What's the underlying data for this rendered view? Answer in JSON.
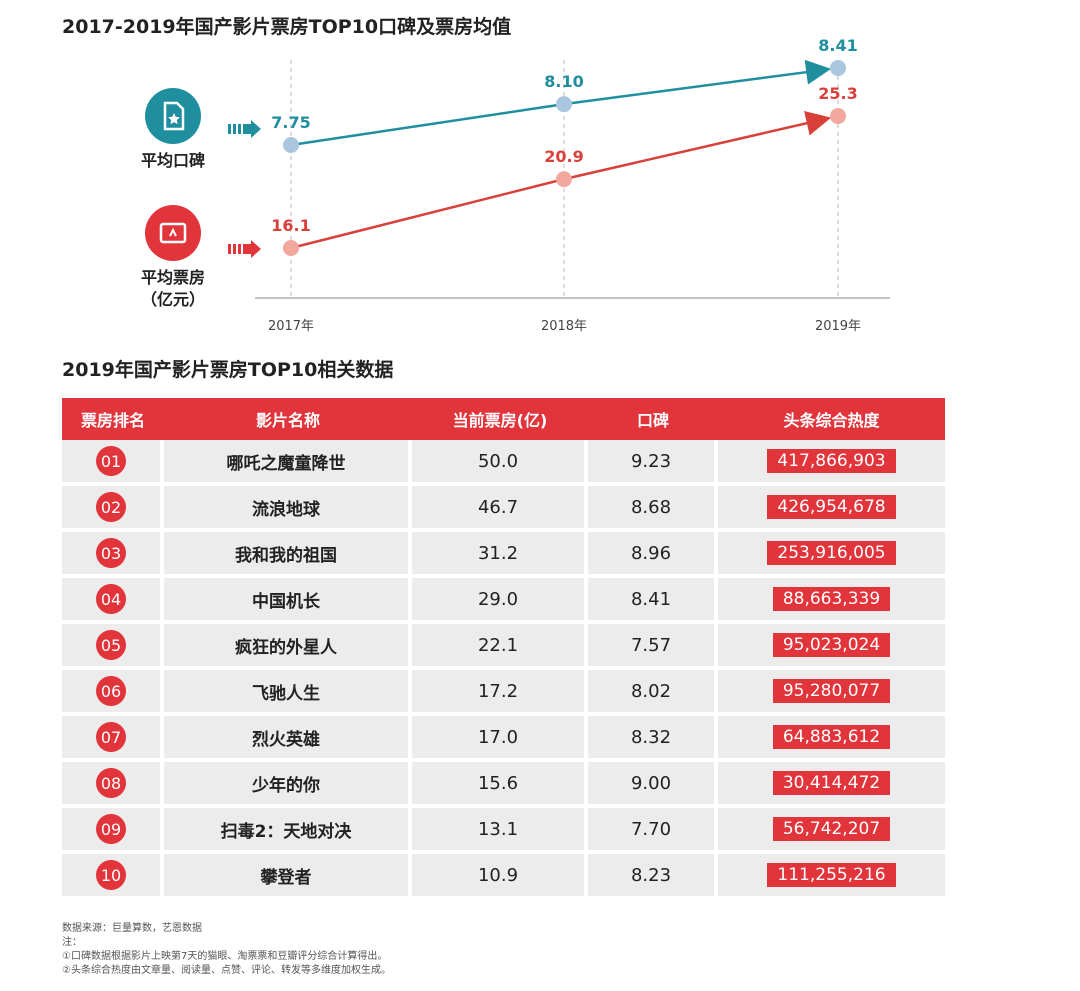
{
  "title_chart": "2017-2019年国产影片票房TOP10口碑及票房均值",
  "title_table": "2019年国产影片票房TOP10相关数据",
  "legend": {
    "rating_label": "平均口碑",
    "boxoffice_label_line1": "平均票房",
    "boxoffice_label_line2": "（亿元）",
    "rating_color": "#1f8e9e",
    "boxoffice_color": "#e2343b"
  },
  "chart_data": {
    "type": "line",
    "x": [
      "2017年",
      "2018年",
      "2019年"
    ],
    "series": [
      {
        "name": "平均口碑",
        "values": [
          7.75,
          8.1,
          8.41
        ],
        "labels": [
          "7.75",
          "8.10",
          "8.41"
        ],
        "color": "#1f8e9e",
        "marker_color": "#a9c6de"
      },
      {
        "name": "平均票房（亿元）",
        "values": [
          16.1,
          20.9,
          25.3
        ],
        "labels": [
          "16.1",
          "20.9",
          "25.3"
        ],
        "color": "#d9403a",
        "marker_color": "#f2a79f"
      }
    ],
    "xlabel": "",
    "ylabel": "",
    "grid": false
  },
  "table": {
    "headers": [
      "票房排名",
      "影片名称",
      "当前票房(亿)",
      "口碑",
      "头条综合热度"
    ],
    "rows": [
      {
        "rank": "01",
        "name": "哪吒之魔童降世",
        "boxoffice": "50.0",
        "rating": "9.23",
        "heat": "417,866,903"
      },
      {
        "rank": "02",
        "name": "流浪地球",
        "boxoffice": "46.7",
        "rating": "8.68",
        "heat": "426,954,678"
      },
      {
        "rank": "03",
        "name": "我和我的祖国",
        "boxoffice": "31.2",
        "rating": "8.96",
        "heat": "253,916,005"
      },
      {
        "rank": "04",
        "name": "中国机长",
        "boxoffice": "29.0",
        "rating": "8.41",
        "heat": "88,663,339"
      },
      {
        "rank": "05",
        "name": "疯狂的外星人",
        "boxoffice": "22.1",
        "rating": "7.57",
        "heat": "95,023,024"
      },
      {
        "rank": "06",
        "name": "飞驰人生",
        "boxoffice": "17.2",
        "rating": "8.02",
        "heat": "95,280,077"
      },
      {
        "rank": "07",
        "name": "烈火英雄",
        "boxoffice": "17.0",
        "rating": "8.32",
        "heat": "64,883,612"
      },
      {
        "rank": "08",
        "name": "少年的你",
        "boxoffice": "15.6",
        "rating": "9.00",
        "heat": "30,414,472"
      },
      {
        "rank": "09",
        "name": "扫毒2：天地对决",
        "boxoffice": "13.1",
        "rating": "7.70",
        "heat": "56,742,207"
      },
      {
        "rank": "10",
        "name": "攀登者",
        "boxoffice": "10.9",
        "rating": "8.23",
        "heat": "111,255,216"
      }
    ]
  },
  "notes": {
    "source": "数据来源：巨量算数，艺恩数据",
    "note_label": "注：",
    "note1": "①口碑数据根据影片上映第7天的猫眼、淘票票和豆瓣评分综合计算得出。",
    "note2": "②头条综合热度由文章量、阅读量、点赞、评论、转发等多维度加权生成。"
  }
}
